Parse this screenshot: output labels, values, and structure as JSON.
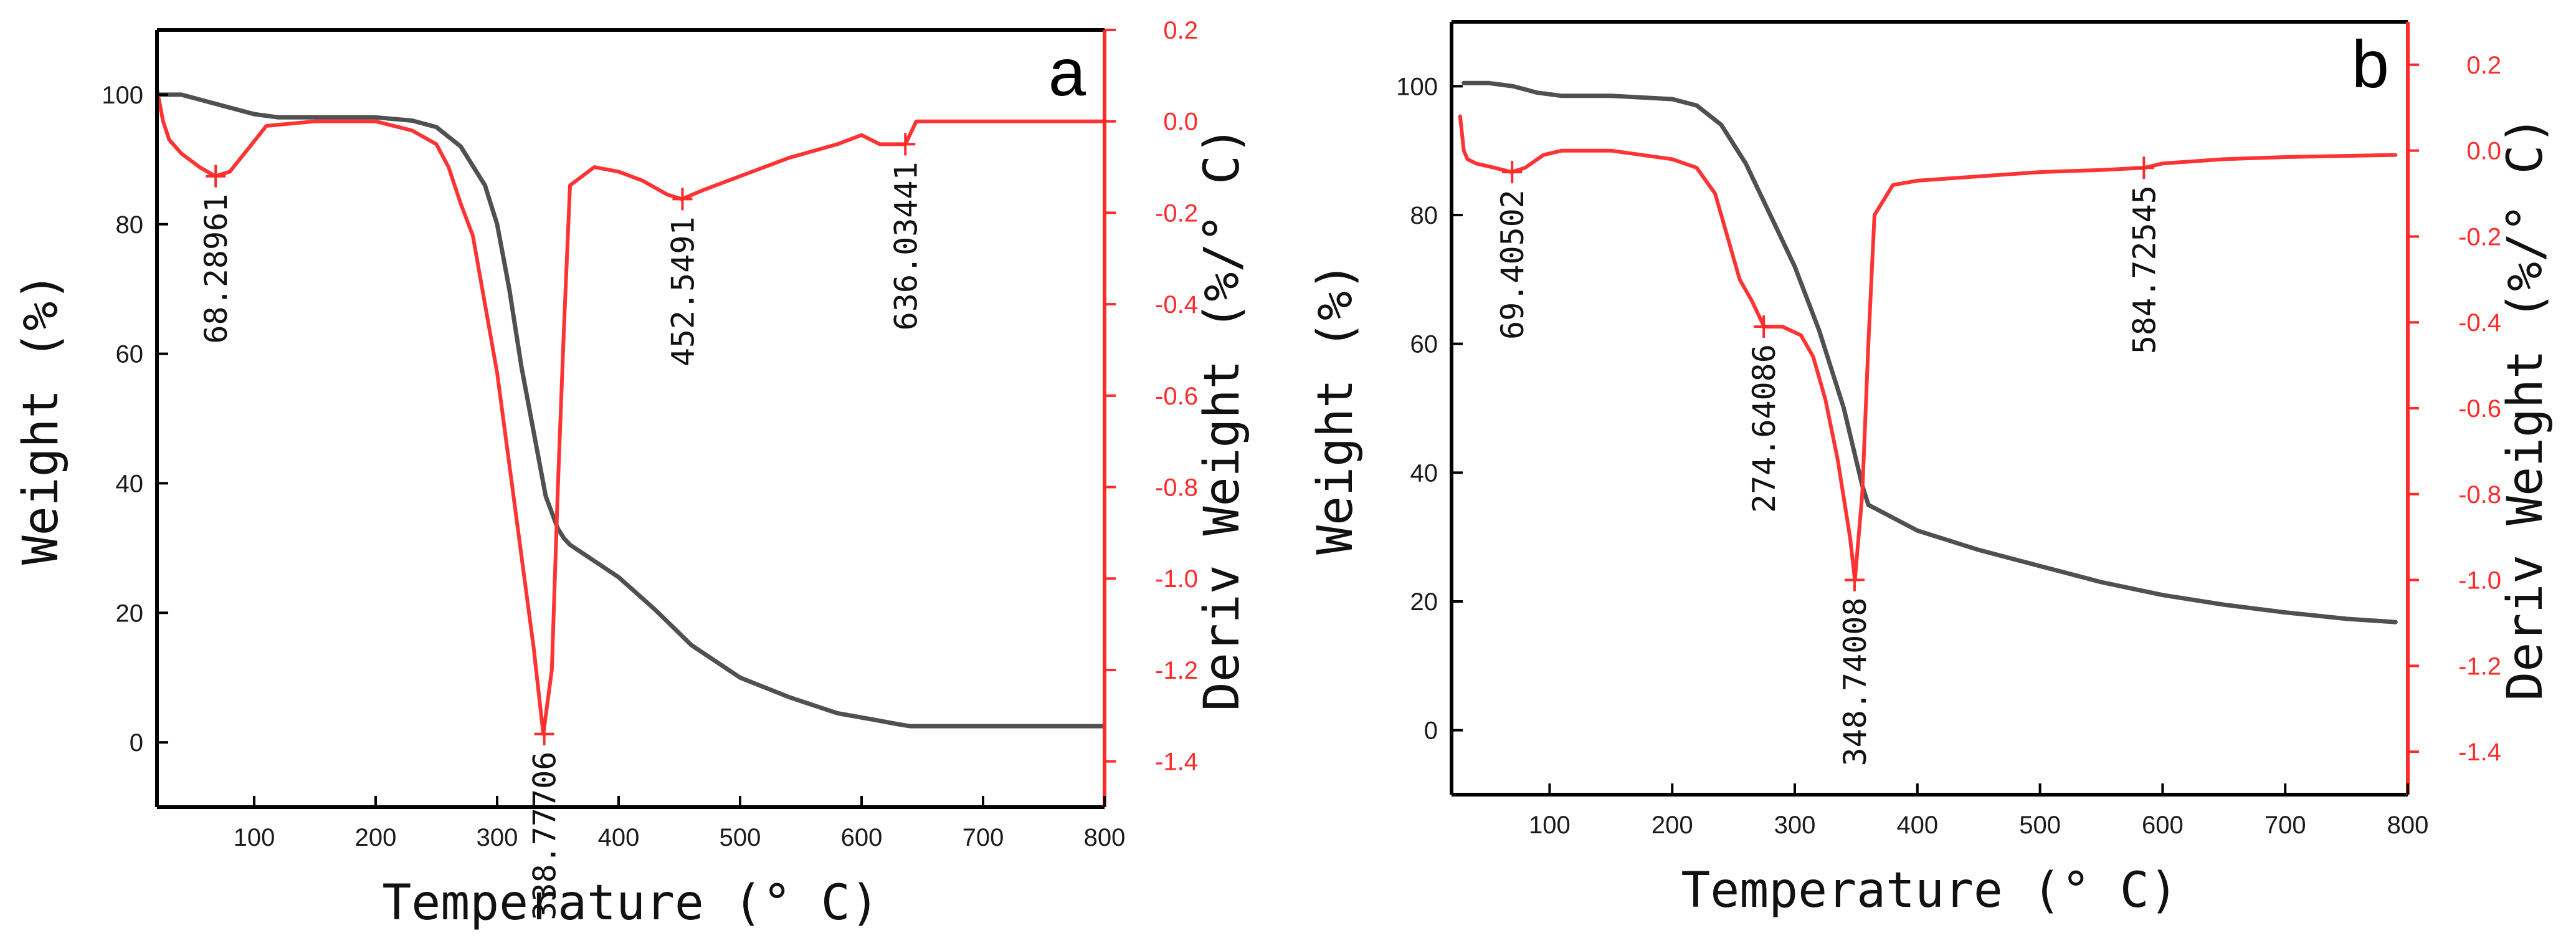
{
  "chart_data": [
    {
      "type": "line",
      "panel_label": "a",
      "xlabel": "Temperature (° C)",
      "ylabel": "Weight (%)",
      "y2label": "Deriv Weight (%/° C)",
      "xlim": [
        20,
        800
      ],
      "ylim": [
        -10,
        110
      ],
      "y2lim": [
        -1.5,
        0.2
      ],
      "x_ticks": [
        100,
        200,
        300,
        400,
        500,
        600,
        700,
        800
      ],
      "y_ticks": [
        0,
        20,
        40,
        60,
        80,
        100
      ],
      "y2_ticks": [
        0.2,
        0.0,
        -0.2,
        -0.4,
        -0.6,
        -0.8,
        -1.0,
        -1.2,
        -1.4
      ],
      "y2_tick_labels": [
        "0.2",
        "0.0",
        "-0.2",
        "-0.4",
        "-0.6",
        "-0.8",
        "-1.0",
        "-1.2",
        "-1.4"
      ],
      "series": [
        {
          "axis": "left",
          "color": "#505050",
          "x": [
            20,
            40,
            60,
            80,
            100,
            120,
            150,
            200,
            230,
            250,
            270,
            290,
            300,
            310,
            320,
            330,
            340,
            350,
            355,
            360,
            380,
            400,
            430,
            460,
            500,
            540,
            580,
            610,
            630,
            640,
            700,
            800
          ],
          "y": [
            100,
            100,
            99,
            98,
            97,
            96.5,
            96.5,
            96.5,
            96,
            95,
            92,
            86,
            80,
            70,
            58,
            48,
            38,
            33,
            31.5,
            30.5,
            28,
            25.5,
            20.5,
            15,
            10,
            7,
            4.5,
            3.5,
            2.8,
            2.5,
            2.5,
            2.5
          ]
        },
        {
          "axis": "right",
          "color": "#ff3333",
          "x": [
            20,
            25,
            30,
            40,
            55,
            68,
            80,
            95,
            110,
            150,
            200,
            230,
            250,
            260,
            270,
            280,
            290,
            300,
            310,
            320,
            330,
            338,
            345,
            350,
            355,
            360,
            380,
            400,
            420,
            440,
            452,
            470,
            500,
            540,
            580,
            600,
            615,
            625,
            636,
            645,
            700,
            800
          ],
          "y": [
            0.07,
            0.0,
            -0.04,
            -0.07,
            -0.1,
            -0.12,
            -0.11,
            -0.06,
            -0.01,
            0.0,
            0.0,
            -0.02,
            -0.05,
            -0.1,
            -0.18,
            -0.25,
            -0.4,
            -0.55,
            -0.75,
            -0.95,
            -1.15,
            -1.34,
            -1.2,
            -0.8,
            -0.45,
            -0.14,
            -0.1,
            -0.11,
            -0.13,
            -0.16,
            -0.17,
            -0.15,
            -0.12,
            -0.08,
            -0.05,
            -0.03,
            -0.05,
            -0.05,
            -0.05,
            0.0,
            0.0,
            0.0
          ]
        }
      ],
      "annotations": [
        {
          "text": "68.28961",
          "x": 68.28961,
          "y2": -0.12
        },
        {
          "text": "338.77706",
          "x": 338.77706,
          "y2": -1.34
        },
        {
          "text": "452.5491",
          "x": 452.5491,
          "y2": -0.17
        },
        {
          "text": "636.03441",
          "x": 636.03441,
          "y2": -0.05
        }
      ]
    },
    {
      "type": "line",
      "panel_label": "b",
      "xlabel": "Temperature (° C)",
      "ylabel": "Weight (%)",
      "y2label": "Deriv Weight (%/° C)",
      "xlim": [
        20,
        800
      ],
      "ylim": [
        -10,
        110
      ],
      "y2lim": [
        -1.5,
        0.3
      ],
      "x_ticks": [
        100,
        200,
        300,
        400,
        500,
        600,
        700,
        800
      ],
      "y_ticks": [
        0,
        20,
        40,
        60,
        80,
        100
      ],
      "y2_ticks": [
        0.2,
        0.0,
        -0.2,
        -0.4,
        -0.6,
        -0.8,
        -1.0,
        -1.2,
        -1.4
      ],
      "y2_tick_labels": [
        "0.2",
        "0.0",
        "-0.2",
        "-0.4",
        "-0.6",
        "-0.8",
        "-1.0",
        "-1.2",
        "-1.4"
      ],
      "series": [
        {
          "axis": "left",
          "color": "#505050",
          "x": [
            30,
            50,
            70,
            90,
            110,
            150,
            200,
            220,
            240,
            260,
            280,
            300,
            320,
            340,
            350,
            355,
            360,
            380,
            400,
            450,
            500,
            550,
            600,
            650,
            700,
            750,
            790
          ],
          "y": [
            100.5,
            100.5,
            100,
            99,
            98.5,
            98.5,
            98,
            97,
            94,
            88,
            80,
            72,
            62,
            50,
            42,
            38,
            35,
            33,
            31,
            28,
            25.5,
            23,
            21,
            19.5,
            18.3,
            17.3,
            16.8
          ]
        },
        {
          "axis": "right",
          "color": "#ff3333",
          "x": [
            27,
            30,
            33,
            40,
            55,
            69,
            80,
            95,
            110,
            150,
            200,
            220,
            235,
            245,
            255,
            265,
            275,
            290,
            305,
            315,
            325,
            335,
            345,
            349,
            355,
            360,
            365,
            380,
            400,
            450,
            500,
            550,
            585,
            600,
            650,
            700,
            790
          ],
          "y": [
            0.08,
            0.0,
            -0.02,
            -0.03,
            -0.04,
            -0.05,
            -0.04,
            -0.01,
            0.0,
            0.0,
            -0.02,
            -0.04,
            -0.1,
            -0.2,
            -0.3,
            -0.35,
            -0.41,
            -0.41,
            -0.43,
            -0.48,
            -0.58,
            -0.72,
            -0.9,
            -1.0,
            -0.8,
            -0.45,
            -0.15,
            -0.08,
            -0.07,
            -0.06,
            -0.05,
            -0.045,
            -0.04,
            -0.03,
            -0.02,
            -0.015,
            -0.01
          ]
        }
      ],
      "annotations": [
        {
          "text": "69.40502",
          "x": 69.40502,
          "y2": -0.05
        },
        {
          "text": "274.64086",
          "x": 274.64086,
          "y2": -0.41
        },
        {
          "text": "348.74008",
          "x": 348.74008,
          "y2": -1.0
        },
        {
          "text": "584.72545",
          "x": 584.72545,
          "y2": -0.04
        }
      ]
    }
  ]
}
